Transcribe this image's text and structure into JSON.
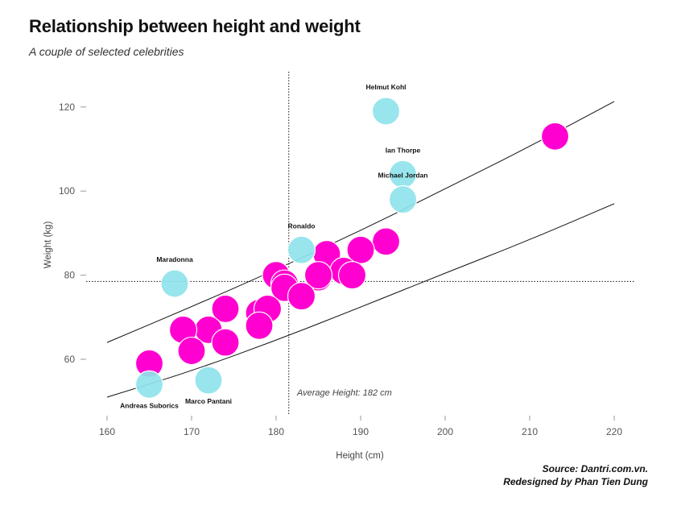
{
  "title": "Relationship between height and weight",
  "subtitle": "A couple of selected celebrities",
  "source_line1": "Source: Dantri.com.vn.",
  "source_line2": "Redesigned by Phan Tien Dung",
  "colors": {
    "highlight": "#8fe3ec",
    "other": "#ff00d0"
  },
  "chart_data": {
    "type": "scatter",
    "xlabel": "Height (cm)",
    "ylabel": "Weight (kg)",
    "xlim": [
      160,
      222
    ],
    "ylim": [
      50,
      122
    ],
    "xticks": [
      160,
      170,
      180,
      190,
      200,
      210,
      220
    ],
    "yticks": [
      60,
      80,
      100,
      120
    ],
    "average_height": {
      "value": 181.5,
      "label": "Average Height: 182 cm"
    },
    "average_weight": 78.5,
    "reference_curves": [
      {
        "points": [
          [
            160,
            64
          ],
          [
            170,
            72.5
          ],
          [
            180,
            81.3
          ],
          [
            190,
            90.6
          ],
          [
            200,
            100.5
          ],
          [
            210,
            110.6
          ],
          [
            220,
            121.3
          ]
        ]
      },
      {
        "points": [
          [
            160,
            51
          ],
          [
            170,
            57.2
          ],
          [
            180,
            64.5
          ],
          [
            190,
            72.4
          ],
          [
            200,
            80.5
          ],
          [
            210,
            88.4
          ],
          [
            220,
            97
          ]
        ]
      }
    ],
    "series": [
      {
        "role": "highlighted",
        "points": [
          {
            "x": 193,
            "y": 119,
            "label": "Helmut Kohl"
          },
          {
            "x": 195,
            "y": 104,
            "label": "Ian Thorpe"
          },
          {
            "x": 195,
            "y": 98,
            "label": "Michael Jordan"
          },
          {
            "x": 183,
            "y": 86,
            "label": "Ronaldo"
          },
          {
            "x": 168,
            "y": 78,
            "label": "Maradonna"
          },
          {
            "x": 165,
            "y": 54,
            "label": "Andreas Suborics"
          },
          {
            "x": 172,
            "y": 55,
            "label": "Marco Pantani"
          }
        ]
      },
      {
        "role": "others",
        "points": [
          {
            "x": 213,
            "y": 113
          },
          {
            "x": 193,
            "y": 88
          },
          {
            "x": 190,
            "y": 86
          },
          {
            "x": 186,
            "y": 85
          },
          {
            "x": 188,
            "y": 81
          },
          {
            "x": 189,
            "y": 80
          },
          {
            "x": 185,
            "y": 79.5
          },
          {
            "x": 185,
            "y": 80
          },
          {
            "x": 180,
            "y": 80
          },
          {
            "x": 181,
            "y": 78
          },
          {
            "x": 181,
            "y": 77
          },
          {
            "x": 183,
            "y": 75
          },
          {
            "x": 178,
            "y": 71
          },
          {
            "x": 179,
            "y": 72
          },
          {
            "x": 178,
            "y": 68
          },
          {
            "x": 174,
            "y": 72
          },
          {
            "x": 172,
            "y": 67
          },
          {
            "x": 169,
            "y": 67
          },
          {
            "x": 174,
            "y": 64
          },
          {
            "x": 170,
            "y": 62
          },
          {
            "x": 165,
            "y": 59
          }
        ]
      }
    ]
  }
}
